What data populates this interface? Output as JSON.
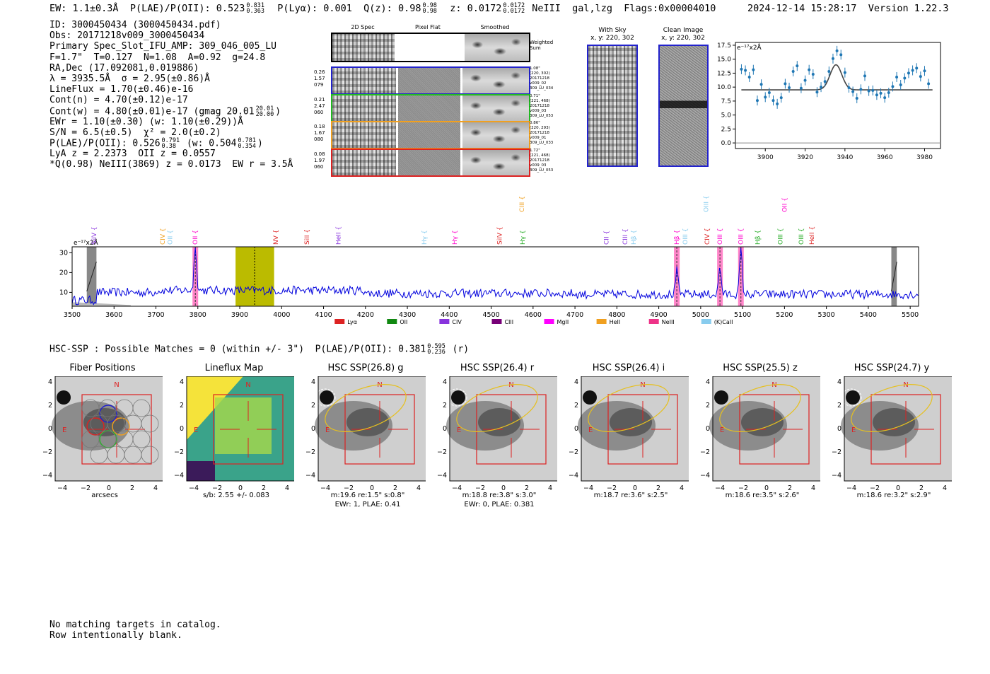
{
  "header": {
    "ew": "EW: 1.1±0.3Å",
    "plae_label": "P(LAE)/P(OII): 0.523",
    "plae_hi": "0.831",
    "plae_lo": "0.363",
    "plya": "P(Lyα): 0.001",
    "q_label": "Q(z): 0.98",
    "q_hi": "0.98",
    "q_lo": "0.98",
    "z_label": "z: 0.0172",
    "z_hi": "0.0172",
    "z_lo": "0.0172",
    "line_class": "NeIII  gal,lzg",
    "flags": "Flags:0x00004010",
    "timestamp": "2024-12-14 15:28:17",
    "version": "Version 1.22.3"
  },
  "info": {
    "id": "ID: 3000450434 (3000450434.pdf)",
    "obs": "Obs: 20171218v009_3000450434",
    "primary": "Primary Spec_Slot_IFU_AMP: 309_046_005_LU",
    "f_line": "F=1.7\"  T=0.127  N=1.08  A=0.92  g=24.8",
    "radec": "RA,Dec (17.092081,0.019886)",
    "lambda": "λ = 3935.5Å  σ = 2.95(±0.86)Å",
    "lineflux": "LineFlux = 1.70(±0.46)e-16",
    "contn": "Cont(n) = 4.70(±0.12)e-17",
    "contw": "Cont(w) = 4.80(±0.01)e-17 (gmag 20.01",
    "contw_hi": "20.01",
    "contw_lo": "20.00",
    "ewr": "EWr = 1.10(±0.30) (w: 1.10(±0.29))Å",
    "sn": "S/N = 6.5(±0.5)  χ² = 2.0(±0.2)",
    "plae": "P(LAE)/P(OII): 0.526",
    "plae_hi": "0.791",
    "plae_lo": "0.38",
    "plae_w": "(w: 0.504",
    "plae_w_hi": "0.781",
    "plae_w_lo": "0.354",
    "lya": "LyA z = 2.2373  OII z = 0.0557",
    "q": "*Q(0.98) NeIII(3869) z = 0.0173  EW r = 3.5Å"
  },
  "cutouts": {
    "col_titles": [
      "2D Spec",
      "Pixel Flat",
      "Smoothed"
    ],
    "weighted_sum": "Weighted\nSum",
    "rows": [
      {
        "left": "0.26\n1.57\n079",
        "right": "1.08\"\n(220, 302)\n20171218\nv009_02\n309_LU_034",
        "color": "#2222cc"
      },
      {
        "left": "0.21\n2.47\n060",
        "right": "0.71\"\n(221, 468)\n20171218\nv009_03\n309_LU_053",
        "color": "#22bb22"
      },
      {
        "left": "0.18\n1.67\n080",
        "right": "0.86\"\n(220, 293)\n20171218\nv009_01\n309_LU_033",
        "color": "#f0a020"
      },
      {
        "left": "0.08\n1.97\n060",
        "right": "1.72\"\n(221, 468)\n20171218\nv009_03\n309_LU_053",
        "color": "#dd2222"
      }
    ],
    "with_sky": "With Sky",
    "with_sky_xy": "x, y: 220, 302",
    "clean": "Clean Image",
    "clean_xy": "x, y: 220, 302"
  },
  "chart_data": [
    {
      "type": "scatter",
      "ylabel": "e⁻¹⁷x2Å",
      "xlim": [
        3885,
        3988
      ],
      "ylim": [
        -1,
        18
      ],
      "xticks": [
        3900,
        3920,
        3940,
        3960,
        3980
      ],
      "yticks": [
        0.0,
        2.5,
        5.0,
        7.5,
        10.0,
        12.5,
        15.0,
        17.5
      ],
      "points": [
        [
          3888,
          13.2
        ],
        [
          3890,
          13.0
        ],
        [
          3892,
          11.8
        ],
        [
          3894,
          13.1
        ],
        [
          3896,
          7.6
        ],
        [
          3898,
          10.5
        ],
        [
          3900,
          8.2
        ],
        [
          3902,
          9.0
        ],
        [
          3904,
          7.6
        ],
        [
          3906,
          7.0
        ],
        [
          3908,
          8.1
        ],
        [
          3910,
          10.6
        ],
        [
          3912,
          9.9
        ],
        [
          3914,
          12.8
        ],
        [
          3916,
          13.8
        ],
        [
          3918,
          9.8
        ],
        [
          3920,
          11.2
        ],
        [
          3922,
          13.1
        ],
        [
          3924,
          12.3
        ],
        [
          3926,
          9.1
        ],
        [
          3928,
          10.0
        ],
        [
          3930,
          11.0
        ],
        [
          3932,
          12.8
        ],
        [
          3934,
          15.1
        ],
        [
          3936,
          16.5
        ],
        [
          3938,
          15.8
        ],
        [
          3940,
          12.6
        ],
        [
          3942,
          9.9
        ],
        [
          3944,
          9.2
        ],
        [
          3946,
          8.0
        ],
        [
          3948,
          9.6
        ],
        [
          3950,
          12.0
        ],
        [
          3952,
          9.3
        ],
        [
          3954,
          9.4
        ],
        [
          3956,
          8.6
        ],
        [
          3958,
          8.9
        ],
        [
          3960,
          8.1
        ],
        [
          3962,
          9.0
        ],
        [
          3964,
          10.1
        ],
        [
          3966,
          11.8
        ],
        [
          3968,
          10.4
        ],
        [
          3970,
          11.6
        ],
        [
          3972,
          12.5
        ],
        [
          3974,
          13.0
        ],
        [
          3976,
          13.4
        ],
        [
          3978,
          11.9
        ],
        [
          3980,
          12.9
        ],
        [
          3982,
          10.6
        ]
      ],
      "fit": {
        "continuum": 9.5,
        "center": 3935.5,
        "sigma": 2.95,
        "amplitude": 4.5
      },
      "zero_line": 0.0
    },
    {
      "type": "line",
      "ylabel": "e⁻¹⁷x2Å",
      "xlim": [
        3500,
        5520
      ],
      "ylim": [
        3,
        33
      ],
      "xticks": [
        3500,
        3600,
        3700,
        3800,
        3900,
        4000,
        4100,
        4200,
        4300,
        4400,
        4500,
        4600,
        4700,
        4800,
        4900,
        5000,
        5100,
        5200,
        5300,
        5400,
        5500
      ],
      "yticks": [
        10,
        20,
        30
      ],
      "peaks": [
        [
          3794,
          24
        ],
        [
          4943,
          12
        ],
        [
          5046,
          14
        ],
        [
          5096,
          24
        ]
      ],
      "highlight_band": [
        3890,
        3982
      ],
      "dashed_line": 3935.5,
      "masked": [
        [
          3535,
          3558
        ],
        [
          5455,
          5468
        ]
      ],
      "pink_marks": [
        3794,
        4943,
        5046,
        5096
      ],
      "line_labels": [
        {
          "text": "SiIV",
          "x": 3552,
          "color": "#8833dd",
          "row": 2
        },
        {
          "text": "CIV",
          "x": 3716,
          "color": "#f0a020",
          "row": 2
        },
        {
          "text": "OII",
          "x": 3734,
          "color": "#88ccee",
          "row": 2
        },
        {
          "text": "OII",
          "x": 3794,
          "color": "#ff00cc",
          "row": 2
        },
        {
          "text": "NV",
          "x": 3986,
          "color": "#dd2222",
          "row": 2
        },
        {
          "text": "SiII",
          "x": 4060,
          "color": "#dd2222",
          "row": 2
        },
        {
          "text": "HeII",
          "x": 4135,
          "color": "#8833dd",
          "row": 2
        },
        {
          "text": "Hγ",
          "x": 4340,
          "color": "#88ccee",
          "row": 2
        },
        {
          "text": "Hγ",
          "x": 4413,
          "color": "#ff00cc",
          "row": 2
        },
        {
          "text": "SiIV",
          "x": 4520,
          "color": "#dd2222",
          "row": 2
        },
        {
          "text": "Hγ",
          "x": 4575,
          "color": "#22aa22",
          "row": 2
        },
        {
          "text": "CIII",
          "x": 4573,
          "color": "#f0a020",
          "row": 0
        },
        {
          "text": "CII",
          "x": 4775,
          "color": "#8833dd",
          "row": 2
        },
        {
          "text": "CIII",
          "x": 4820,
          "color": "#8833dd",
          "row": 2
        },
        {
          "text": "Hβ",
          "x": 4840,
          "color": "#88ccee",
          "row": 2
        },
        {
          "text": "Hβ",
          "x": 4943,
          "color": "#ff00cc",
          "row": 2
        },
        {
          "text": "OIII",
          "x": 4963,
          "color": "#88ccee",
          "row": 2
        },
        {
          "text": "CIV",
          "x": 5015,
          "color": "#dd2222",
          "row": 2
        },
        {
          "text": "OIII",
          "x": 5046,
          "color": "#ff00cc",
          "row": 2
        },
        {
          "text": "OIII",
          "x": 5096,
          "color": "#ff00cc",
          "row": 2
        },
        {
          "text": "OIII",
          "x": 5013,
          "color": "#88ccee",
          "row": 0
        },
        {
          "text": "Hβ",
          "x": 5136,
          "color": "#22aa22",
          "row": 2
        },
        {
          "text": "OIII",
          "x": 5190,
          "color": "#22aa22",
          "row": 2
        },
        {
          "text": "OII",
          "x": 5200,
          "color": "#ff00cc",
          "row": 0
        },
        {
          "text": "OIII",
          "x": 5240,
          "color": "#22aa22",
          "row": 2
        },
        {
          "text": "HeII",
          "x": 5265,
          "color": "#dd2222",
          "row": 2
        }
      ],
      "legend": [
        {
          "name": "Lyα",
          "color": "#dd2222"
        },
        {
          "name": "OII",
          "color": "#118811"
        },
        {
          "name": "CIV",
          "color": "#8833dd"
        },
        {
          "name": "CIII",
          "color": "#770077"
        },
        {
          "name": "MgII",
          "color": "#ff00ff"
        },
        {
          "name": "HeII",
          "color": "#f0a020"
        },
        {
          "name": "NeIII",
          "color": "#ee3388"
        },
        {
          "name": "(K)CaII",
          "color": "#88ccee"
        }
      ]
    }
  ],
  "hsc_line": "HSC-SSP : Possible Matches = 0 (within +/- 3\")  P(LAE)/P(OII): 0.381",
  "hsc_hi": "0.595",
  "hsc_lo": "0.236",
  "hsc_suffix": "(r)",
  "panels": [
    {
      "title": "Fiber Positions",
      "cap1": "arcsecs",
      "cap2": ""
    },
    {
      "title": "Lineflux Map",
      "cap1": "s/b: 2.55 +/- 0.083",
      "cap2": ""
    },
    {
      "title": "HSC SSP(26.8) g",
      "cap1": "m:19.6  re:1.5\"  s:0.8\"",
      "cap2": "EWr: 1, PLAE: 0.41"
    },
    {
      "title": "HSC SSP(26.4) r",
      "cap1": "m:18.8  re:3.8\"  s:3.0\"",
      "cap2": "EWr: 0, PLAE: 0.381"
    },
    {
      "title": "HSC SSP(26.4) i",
      "cap1": "m:18.7  re:3.6\"  s:2.5\"",
      "cap2": ""
    },
    {
      "title": "HSC SSP(25.5) z",
      "cap1": "m:18.6  re:3.5\"  s:2.6\"",
      "cap2": ""
    },
    {
      "title": "HSC SSP(24.7) y",
      "cap1": "m:18.6  re:3.2\"  s:2.9\"",
      "cap2": ""
    }
  ],
  "panel_axis": {
    "ticks": [
      "4",
      "2",
      "0",
      "−2",
      "−4"
    ],
    "xticks": [
      "−4",
      "−2",
      "0",
      "2",
      "4"
    ],
    "north": "N",
    "east": "E"
  },
  "footer": {
    "line1": "No matching targets in catalog.",
    "line2": "Row intentionally blank."
  }
}
